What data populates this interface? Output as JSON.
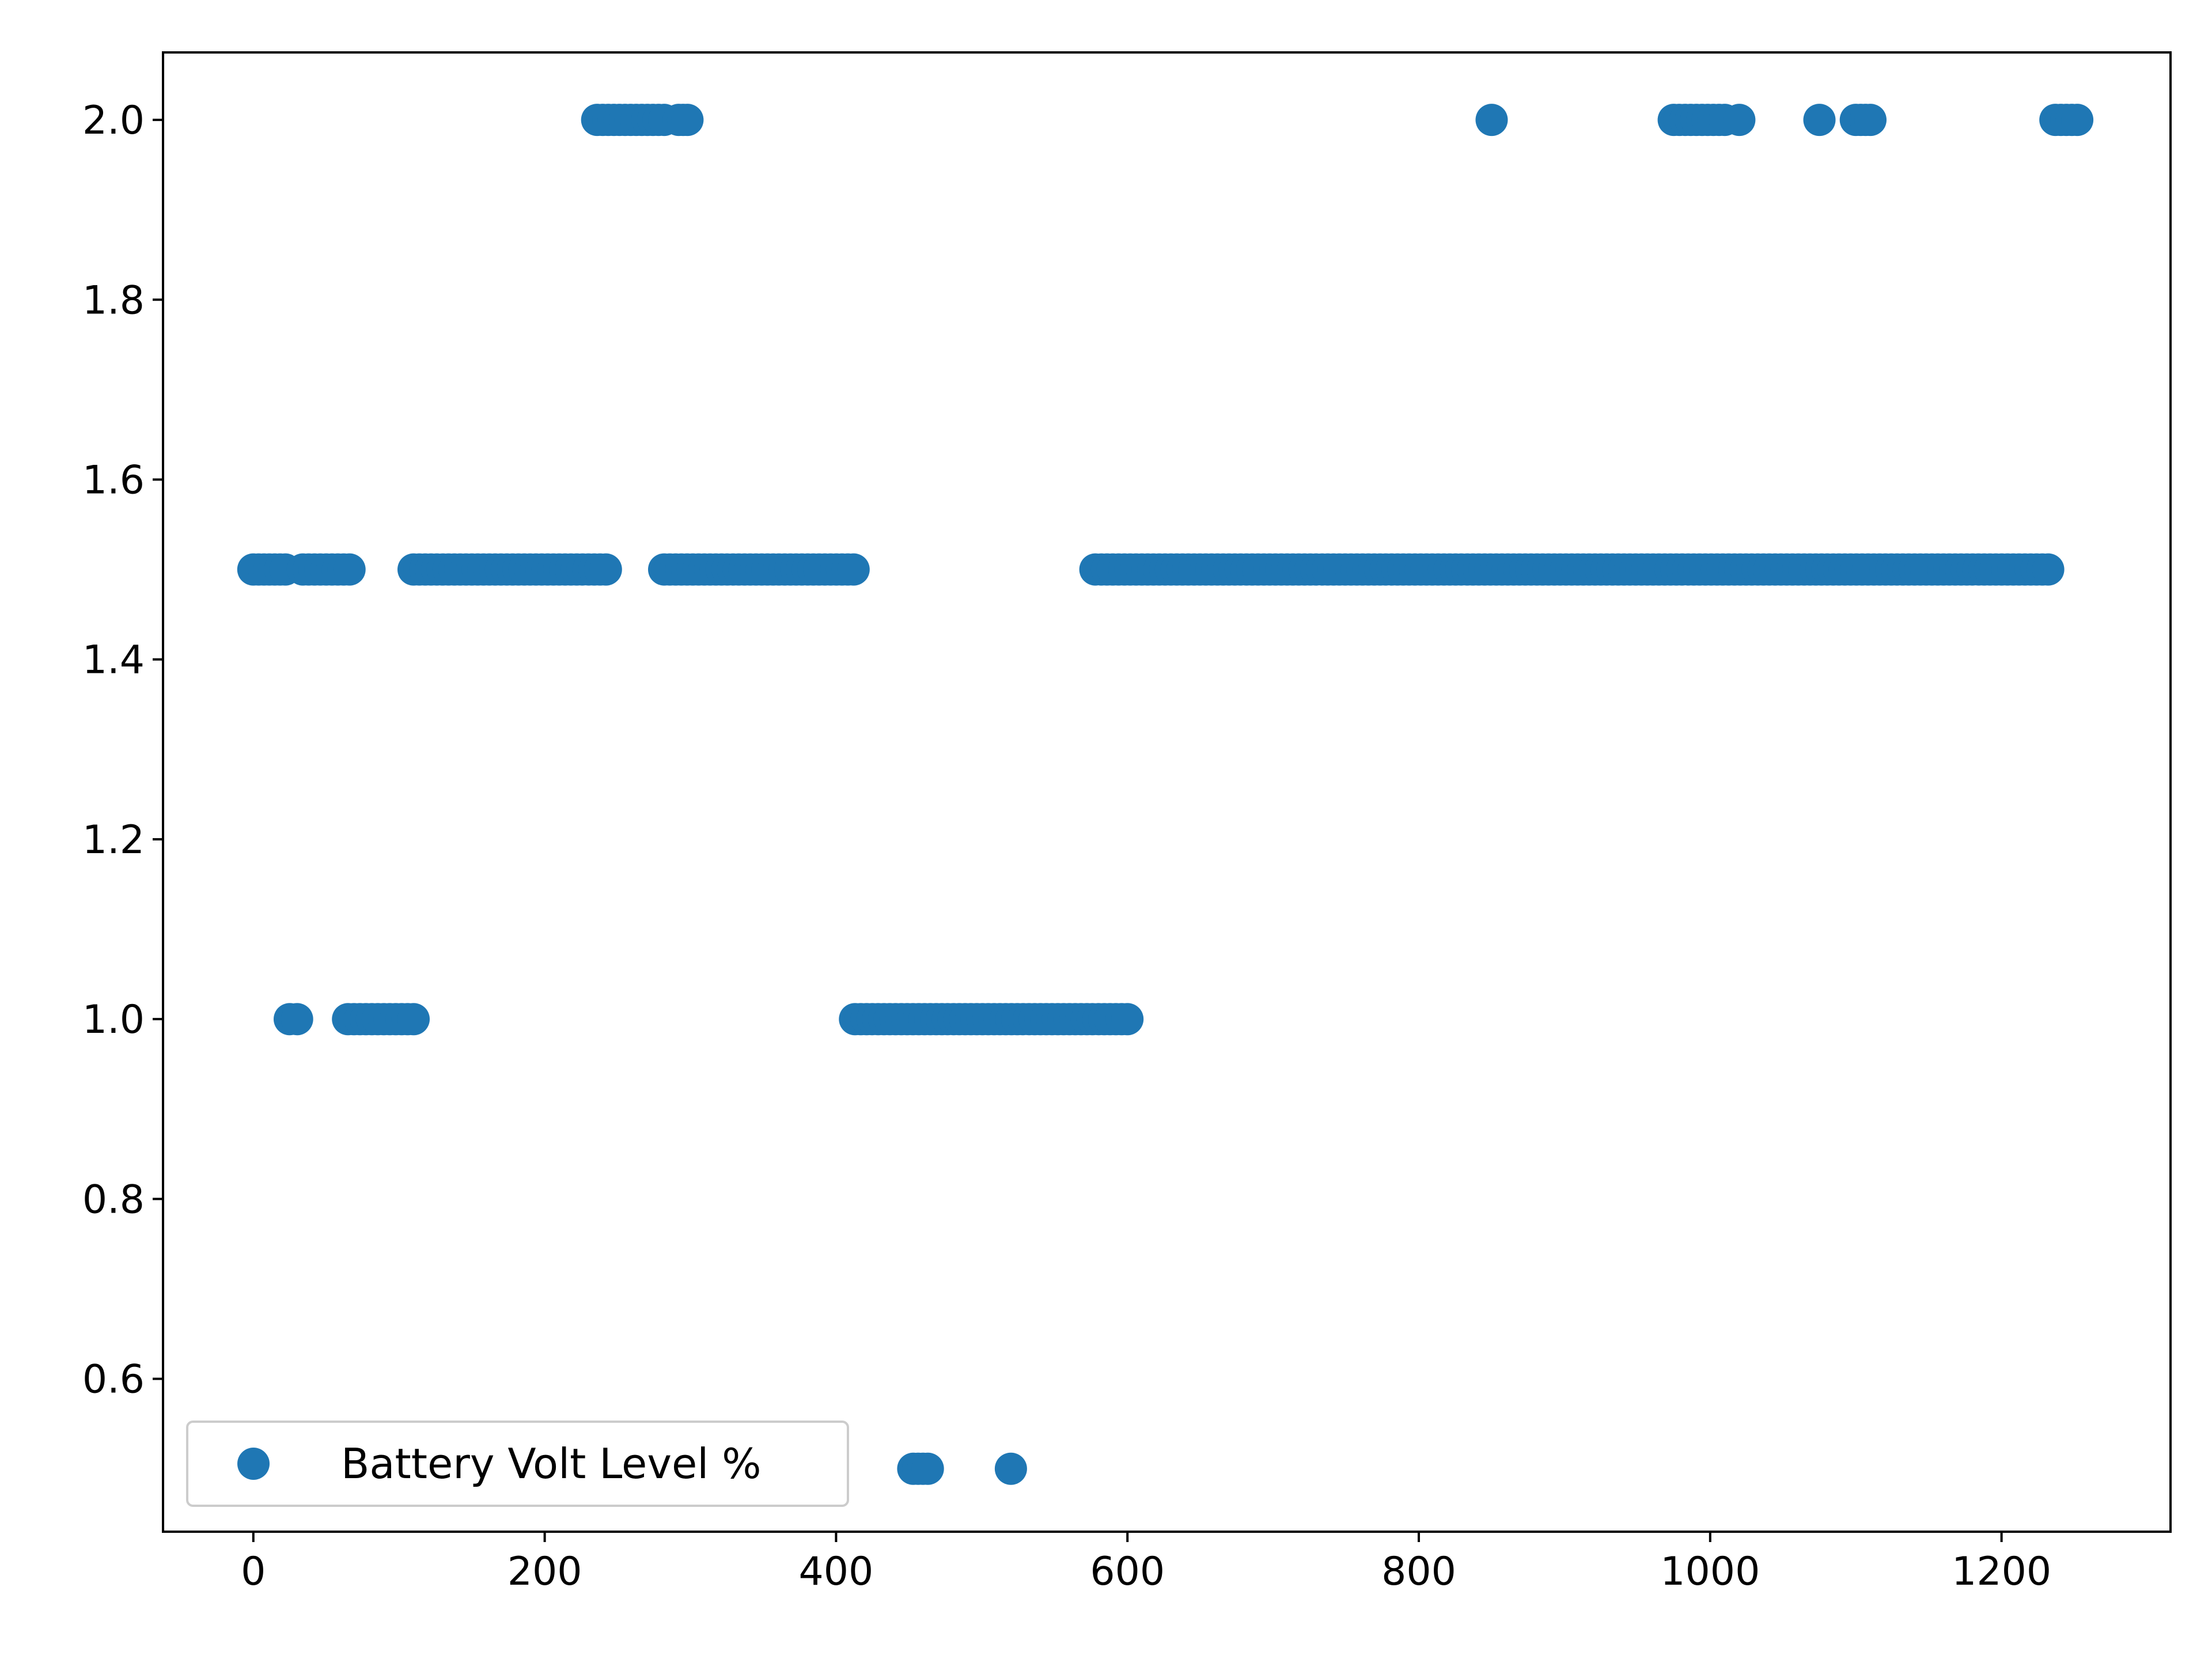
{
  "chart_data": {
    "type": "scatter",
    "title": "",
    "xlabel": "",
    "ylabel": "",
    "xlim": [
      -62,
      1316
    ],
    "ylim": [
      0.43,
      2.075
    ],
    "x_ticks": [
      0,
      200,
      400,
      600,
      800,
      1000,
      1200
    ],
    "y_ticks": [
      0.6,
      0.8,
      1.0,
      1.2,
      1.4,
      1.6,
      1.8,
      2.0
    ],
    "x_tick_labels": [
      "0",
      "200",
      "400",
      "600",
      "800",
      "1000",
      "1200"
    ],
    "y_tick_labels": [
      "0.6",
      "0.8",
      "1.0",
      "1.2",
      "1.4",
      "1.6",
      "1.8",
      "2.0"
    ],
    "grid": false,
    "legend": {
      "position": "lower-left"
    },
    "series": [
      {
        "name": "Battery Volt Level %",
        "color": "#1f77b4",
        "marker": "circle",
        "runs": [
          {
            "x_start": 0,
            "x_end": 22,
            "y": 1.5
          },
          {
            "x_start": 34,
            "x_end": 66,
            "y": 1.5
          },
          {
            "x_start": 110,
            "x_end": 242,
            "y": 1.5
          },
          {
            "x_start": 282,
            "x_end": 412,
            "y": 1.5
          },
          {
            "x_start": 578,
            "x_end": 1232,
            "y": 1.5
          },
          {
            "x_start": 25,
            "x_end": 30,
            "y": 1.0
          },
          {
            "x_start": 65,
            "x_end": 110,
            "y": 1.0
          },
          {
            "x_start": 413,
            "x_end": 600,
            "y": 1.0
          },
          {
            "x_start": 236,
            "x_end": 282,
            "y": 2.0
          },
          {
            "x_start": 292,
            "x_end": 298,
            "y": 2.0
          },
          {
            "x_start": 850,
            "x_end": 850,
            "y": 2.0
          },
          {
            "x_start": 975,
            "x_end": 1010,
            "y": 2.0
          },
          {
            "x_start": 1020,
            "x_end": 1020,
            "y": 2.0
          },
          {
            "x_start": 1075,
            "x_end": 1075,
            "y": 2.0
          },
          {
            "x_start": 1100,
            "x_end": 1110,
            "y": 2.0
          },
          {
            "x_start": 1237,
            "x_end": 1252,
            "y": 2.0
          },
          {
            "x_start": 453,
            "x_end": 463,
            "y": 0.5
          },
          {
            "x_start": 520,
            "x_end": 520,
            "y": 0.5
          }
        ]
      }
    ]
  }
}
